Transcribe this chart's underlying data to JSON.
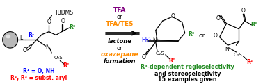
{
  "bg_color": "#ffffff",
  "fig_width": 3.78,
  "fig_height": 1.21,
  "dpi": 100,
  "tfa_text": "TFA",
  "tfa_color": "#800080",
  "or1_text": "or",
  "tfates_text": "TFA/TES",
  "tfates_color": "#FF8C00",
  "lactone_text": "lactone",
  "lactone_color": "#000000",
  "or2_text": "or",
  "oxazepane_text": "oxazepane",
  "oxazepane_color": "#FF8C00",
  "formation_text": "formation",
  "r1_legend": "R¹ = O, NH",
  "r1_legend_color": "#0000FF",
  "r23_legend": "R², R³ = subst. aryl",
  "r23_legend_color": "#FF0000",
  "green": "#228B22",
  "red": "#FF0000",
  "blue": "#0000FF",
  "orange": "#FF8C00",
  "purple": "#800080",
  "black": "#000000",
  "r3_dep": "R³-dependent regioselectivity",
  "stereo": "and stereoselectivity",
  "examples": "15 examples given"
}
